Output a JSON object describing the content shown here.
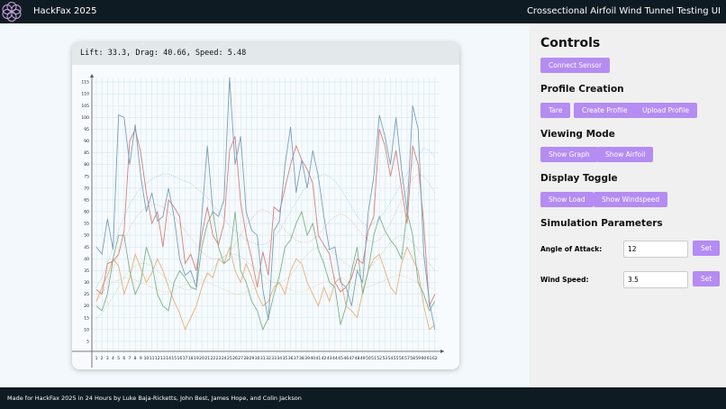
{
  "header": {
    "title": "HackFax 2025",
    "subtitle": "Crossectional Airfoil Wind Tunnel Testing UI"
  },
  "status": "Lift: 33.3, Drag: 40.66, Speed: 5.48",
  "controls": {
    "title": "Controls",
    "connect": "Connect Sensor",
    "profile_title": "Profile Creation",
    "profile_buttons": [
      "Tare",
      "Create Profile",
      "Upload Profile"
    ],
    "viewing_title": "Viewing Mode",
    "viewing_buttons": [
      "Show Graph",
      "Show Airfoil"
    ],
    "display_title": "Display Toggle",
    "display_buttons": [
      "Show Load",
      "Show Windspeed"
    ],
    "sim_title": "Simulation Parameters",
    "params": [
      {
        "label": "Angle of Attack:",
        "value": "12",
        "button": "Set"
      },
      {
        "label": "Wind Speed:",
        "value": "3.5",
        "button": "Set"
      }
    ]
  },
  "footer": "Made for HackFax 2025 in 24 Hours by Luke Baja-Ricketts, John Best, James Hope, and Colin Jackson",
  "chart_data": {
    "type": "line",
    "grid": true,
    "categories": [
      1,
      2,
      3,
      4,
      5,
      6,
      7,
      8,
      9,
      10,
      11,
      12,
      13,
      14,
      15,
      16,
      17,
      18,
      19,
      20,
      21,
      22,
      23,
      24,
      25,
      26,
      27,
      28,
      29,
      30,
      31,
      32,
      33,
      34,
      35,
      36,
      37,
      38,
      39,
      40,
      41,
      42,
      43,
      44,
      45,
      46,
      47,
      48,
      49,
      50,
      51,
      52,
      53,
      54,
      55,
      56,
      57,
      58,
      59,
      60,
      61,
      62
    ],
    "ylim": [
      0,
      120
    ],
    "yticks": [
      5,
      10,
      15,
      20,
      25,
      30,
      35,
      40,
      45,
      50,
      55,
      60,
      65,
      70,
      75,
      80,
      85,
      90,
      95,
      100,
      105,
      110,
      115
    ],
    "series": [
      {
        "color": "#9fc5e0",
        "dash": true,
        "values": [
          28,
          32,
          38,
          45,
          52,
          58,
          63,
          67,
          70,
          72,
          74,
          75,
          76,
          76,
          75,
          74,
          73,
          72,
          70,
          68,
          66,
          63,
          60,
          57,
          54,
          52,
          50,
          48,
          47,
          46,
          46,
          47,
          49,
          52,
          56,
          60,
          64,
          68,
          71,
          74,
          75,
          76,
          75,
          73,
          70,
          66,
          62,
          58,
          55,
          54,
          55,
          57,
          60,
          64,
          68,
          72,
          76,
          80,
          84,
          87,
          86,
          83
        ]
      },
      {
        "color": "#e4b0ac",
        "dash": true,
        "values": [
          22,
          25,
          30,
          36,
          42,
          48,
          53,
          57,
          60,
          62,
          63,
          63,
          62,
          60,
          58,
          55,
          52,
          49,
          46,
          43,
          41,
          40,
          40,
          41,
          43,
          46,
          50,
          54,
          57,
          60,
          61,
          60,
          58,
          55,
          52,
          50,
          48,
          47,
          47,
          48,
          50,
          53,
          56,
          58,
          59,
          58,
          56,
          53,
          50,
          48,
          47,
          48,
          51,
          55,
          60,
          65,
          70,
          74,
          76,
          75,
          72,
          68
        ]
      },
      {
        "color": "#b0d4b8",
        "dash": true,
        "values": [
          15,
          17,
          20,
          24,
          28,
          32,
          35,
          37,
          38,
          38,
          37,
          35,
          33,
          31,
          29,
          28,
          27,
          27,
          28,
          30,
          33,
          36,
          39,
          41,
          42,
          42,
          41,
          39,
          37,
          35,
          33,
          31,
          30,
          30,
          31,
          33,
          36,
          39,
          42,
          44,
          45,
          45,
          44,
          42,
          40,
          38,
          36,
          35,
          35,
          36,
          38,
          41,
          44,
          47,
          49,
          50,
          49,
          47,
          44,
          41,
          38,
          35
        ]
      },
      {
        "color": "#ecc8a0",
        "dash": true,
        "values": [
          25,
          26,
          28,
          30,
          31,
          32,
          32,
          31,
          30,
          29,
          28,
          27,
          26,
          26,
          27,
          28,
          29,
          30,
          31,
          31,
          30,
          29,
          28,
          27,
          26,
          25,
          25,
          26,
          27,
          28,
          29,
          30,
          30,
          29,
          28,
          27,
          26,
          26,
          27,
          28,
          29,
          30,
          31,
          32,
          32,
          31,
          30,
          29,
          28,
          28,
          29,
          30,
          31,
          32,
          33,
          33,
          32,
          31,
          30,
          29,
          28,
          27
        ]
      },
      {
        "color": "#e8b07a",
        "dash": false,
        "values": [
          22,
          28,
          33,
          40,
          37,
          25,
          32,
          42,
          36,
          30,
          34,
          40,
          35,
          28,
          22,
          17,
          10,
          15,
          20,
          28,
          34,
          32,
          40,
          38,
          45,
          35,
          30,
          38,
          32,
          25,
          20,
          22,
          28,
          30,
          25,
          35,
          40,
          38,
          30,
          25,
          20,
          28,
          22,
          30,
          32,
          20,
          18,
          15,
          26,
          35,
          40,
          42,
          35,
          28,
          25,
          38,
          45,
          40,
          35,
          20,
          10,
          12
        ]
      },
      {
        "color": "#7fb08a",
        "dash": false,
        "values": [
          20,
          18,
          25,
          40,
          50,
          50,
          35,
          25,
          30,
          45,
          38,
          25,
          20,
          18,
          30,
          35,
          32,
          28,
          27,
          45,
          55,
          60,
          45,
          38,
          40,
          60,
          35,
          30,
          22,
          18,
          10,
          15,
          25,
          33,
          45,
          48,
          55,
          60,
          50,
          55,
          44,
          38,
          30,
          28,
          12,
          20,
          35,
          45,
          25,
          35,
          50,
          58,
          52,
          48,
          45,
          40,
          60,
          50,
          30,
          25,
          18,
          22
        ]
      },
      {
        "color": "#d4817b",
        "dash": false,
        "values": [
          27,
          25,
          38,
          39,
          42,
          52,
          90,
          95,
          85,
          68,
          55,
          60,
          45,
          65,
          62,
          58,
          38,
          42,
          35,
          50,
          62,
          50,
          46,
          55,
          86,
          92,
          64,
          50,
          40,
          28,
          43,
          33,
          62,
          60,
          70,
          80,
          88,
          82,
          78,
          72,
          50,
          46,
          42,
          30,
          26,
          28,
          32,
          40,
          38,
          52,
          58,
          95,
          88,
          75,
          86,
          70,
          55,
          88,
          80,
          55,
          20,
          25
        ]
      },
      {
        "color": "#7a9fba",
        "dash": false,
        "values": [
          45,
          42,
          57,
          44,
          101,
          100,
          80,
          97,
          75,
          60,
          68,
          56,
          58,
          70,
          58,
          40,
          33,
          35,
          28,
          58,
          88,
          60,
          58,
          65,
          117,
          80,
          92,
          60,
          52,
          50,
          27,
          14,
          52,
          56,
          80,
          96,
          68,
          82,
          70,
          86,
          75,
          58,
          44,
          45,
          30,
          28,
          20,
          35,
          30,
          60,
          75,
          101,
          92,
          80,
          100,
          78,
          60,
          105,
          95,
          42,
          22,
          10
        ]
      }
    ]
  }
}
